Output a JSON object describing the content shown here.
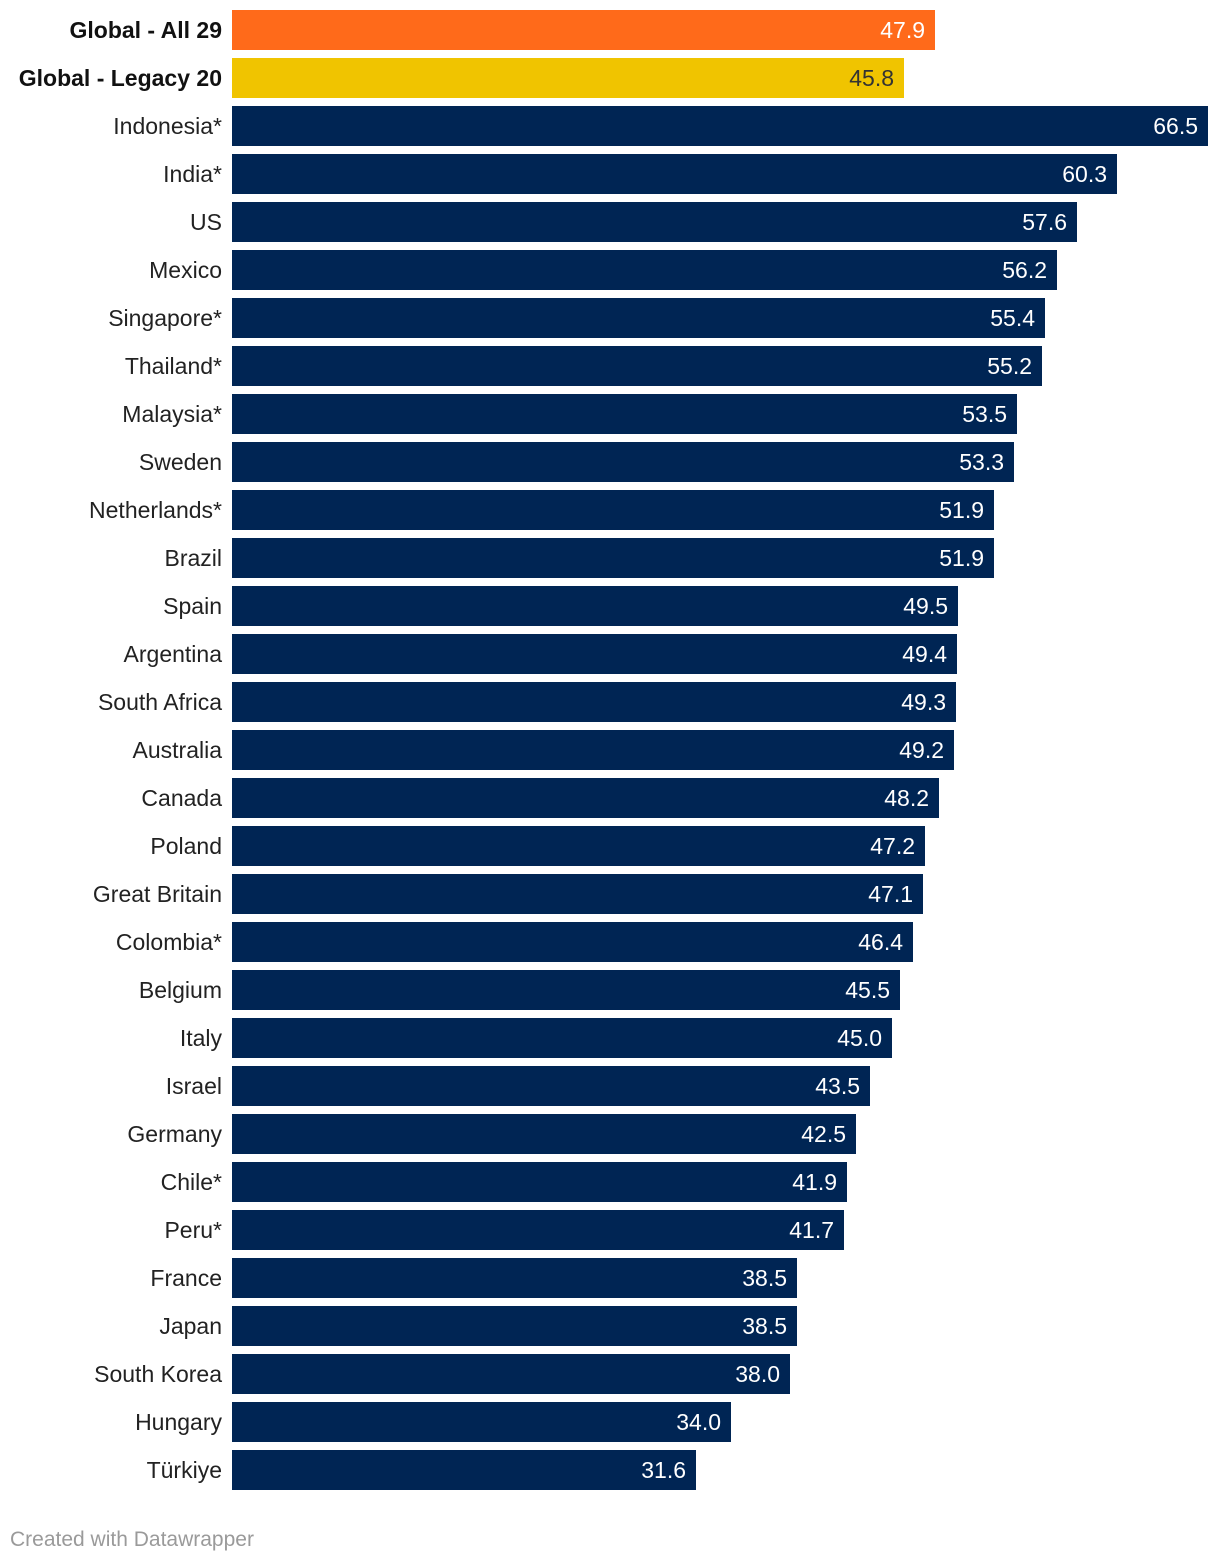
{
  "chart_data": {
    "type": "bar",
    "orientation": "horizontal",
    "title": "",
    "xlabel": "",
    "ylabel": "",
    "xlim": [
      0,
      66.5
    ],
    "grid": false,
    "categories": [
      "Global - All 29",
      "Global - Legacy 20",
      "Indonesia*",
      "India*",
      "US",
      "Mexico",
      "Singapore*",
      "Thailand*",
      "Malaysia*",
      "Sweden",
      "Netherlands*",
      "Brazil",
      "Spain",
      "Argentina",
      "South Africa",
      "Australia",
      "Canada",
      "Poland",
      "Great Britain",
      "Colombia*",
      "Belgium",
      "Italy",
      "Israel",
      "Germany",
      "Chile*",
      "Peru*",
      "France",
      "Japan",
      "South Korea",
      "Hungary",
      "Türkiye"
    ],
    "values": [
      47.9,
      45.8,
      66.5,
      60.3,
      57.6,
      56.2,
      55.4,
      55.2,
      53.5,
      53.3,
      51.9,
      51.9,
      49.5,
      49.4,
      49.3,
      49.2,
      48.2,
      47.2,
      47.1,
      46.4,
      45.5,
      45.0,
      43.5,
      42.5,
      41.9,
      41.7,
      38.5,
      38.5,
      38.0,
      34.0,
      31.6
    ],
    "value_labels": [
      "47.9",
      "45.8",
      "66.5",
      "60.3",
      "57.6",
      "56.2",
      "55.4",
      "55.2",
      "53.5",
      "53.3",
      "51.9",
      "51.9",
      "49.5",
      "49.4",
      "49.3",
      "49.2",
      "48.2",
      "47.2",
      "47.1",
      "46.4",
      "45.5",
      "45.0",
      "43.5",
      "42.5",
      "41.9",
      "41.7",
      "38.5",
      "38.5",
      "38.0",
      "34.0",
      "31.6"
    ],
    "colors": [
      "#ff6a1a",
      "#f0c400",
      "#002554",
      "#002554",
      "#002554",
      "#002554",
      "#002554",
      "#002554",
      "#002554",
      "#002554",
      "#002554",
      "#002554",
      "#002554",
      "#002554",
      "#002554",
      "#002554",
      "#002554",
      "#002554",
      "#002554",
      "#002554",
      "#002554",
      "#002554",
      "#002554",
      "#002554",
      "#002554",
      "#002554",
      "#002554",
      "#002554",
      "#002554",
      "#002554",
      "#002554"
    ],
    "highlighted": [
      true,
      true,
      false,
      false,
      false,
      false,
      false,
      false,
      false,
      false,
      false,
      false,
      false,
      false,
      false,
      false,
      false,
      false,
      false,
      false,
      false,
      false,
      false,
      false,
      false,
      false,
      false,
      false,
      false,
      false,
      false
    ]
  },
  "footer": {
    "credit": "Created with Datawrapper"
  }
}
